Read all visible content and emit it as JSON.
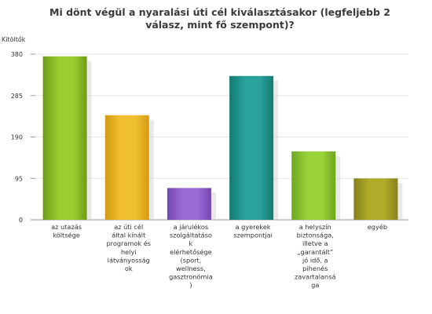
{
  "chart_data": {
    "type": "bar",
    "title": "Mi dönt végül a nyaralási úti cél kiválasztásakor (legfeljebb 2 válasz, mint fő szempont)?",
    "ylabel": "Kitöltők",
    "xlabel": "",
    "ylim": [
      0,
      380
    ],
    "yticks": [
      0,
      95,
      190,
      285,
      380
    ],
    "grid": true,
    "legend": "none",
    "categories": [
      "az utazás költsége",
      "az úti cél által kínált programok és helyi látványosságok",
      "a járulékos szolgáltatások elérhetősége (sport, wellness, gasztronómia)",
      "a gyerekek szempontjai",
      "a helyszín biztonsága, illetve a „garantált” jó idő, a pihenés zavartalansága",
      "egyéb"
    ],
    "category_label_lines": [
      [
        "az utazás",
        "költsége"
      ],
      [
        "az úti cél",
        "által kínált",
        "programok és",
        "helyi",
        "látványosság",
        "ok"
      ],
      [
        "a járulékos",
        "szolgáltatáso",
        "k",
        "elérhetősége",
        "(sport,",
        "wellness,",
        "gasztronómia",
        ")"
      ],
      [
        "a gyerekek",
        "szempontjai"
      ],
      [
        "a helyszín",
        "biztonsága,",
        "illetve a",
        "„garantált”",
        "jó idő, a",
        "pihenés",
        "zavartalansá",
        "ga"
      ],
      [
        "egyéb"
      ]
    ],
    "values": [
      375,
      240,
      73,
      330,
      157,
      95
    ],
    "colors": [
      "#9acd32",
      "#f0c030",
      "#9b6ad6",
      "#2aa19a",
      "#9ad23a",
      "#b0ac2a"
    ],
    "colors_dark": [
      "#6f9c16",
      "#d39a10",
      "#7447b0",
      "#167a74",
      "#6ea620",
      "#86821a"
    ]
  }
}
